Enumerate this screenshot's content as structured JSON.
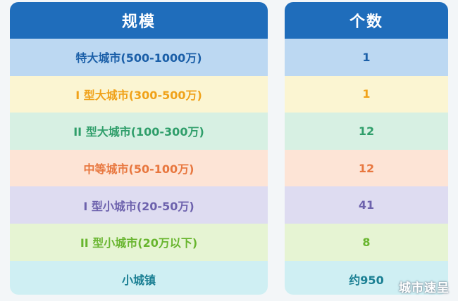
{
  "table": {
    "headers": {
      "scale": "规模",
      "count": "个数"
    },
    "header_color": "#1f6dbb",
    "rows": [
      {
        "scale": "特大城市(500-1000万)",
        "count": "1",
        "bg": "#bcd8f2",
        "fg": "#1b5fa8"
      },
      {
        "scale": "I 型大城市(300-500万)",
        "count": "1",
        "bg": "#fbf5d2",
        "fg": "#f0a21a"
      },
      {
        "scale": "II 型大城市(100-300万)",
        "count": "12",
        "bg": "#d7f0e3",
        "fg": "#2f9e6a"
      },
      {
        "scale": "中等城市(50-100万)",
        "count": "12",
        "bg": "#fde4d6",
        "fg": "#e8773f"
      },
      {
        "scale": "I 型小城市(20-50万)",
        "count": "41",
        "bg": "#dedcf1",
        "fg": "#6d62ad"
      },
      {
        "scale": "II 型小城市(20万以下)",
        "count": "8",
        "bg": "#e6f4d3",
        "fg": "#68b52e"
      },
      {
        "scale": "小城镇",
        "count": "约950",
        "bg": "#cfeff3",
        "fg": "#1a7f93"
      }
    ]
  },
  "watermark": "城市速呈"
}
